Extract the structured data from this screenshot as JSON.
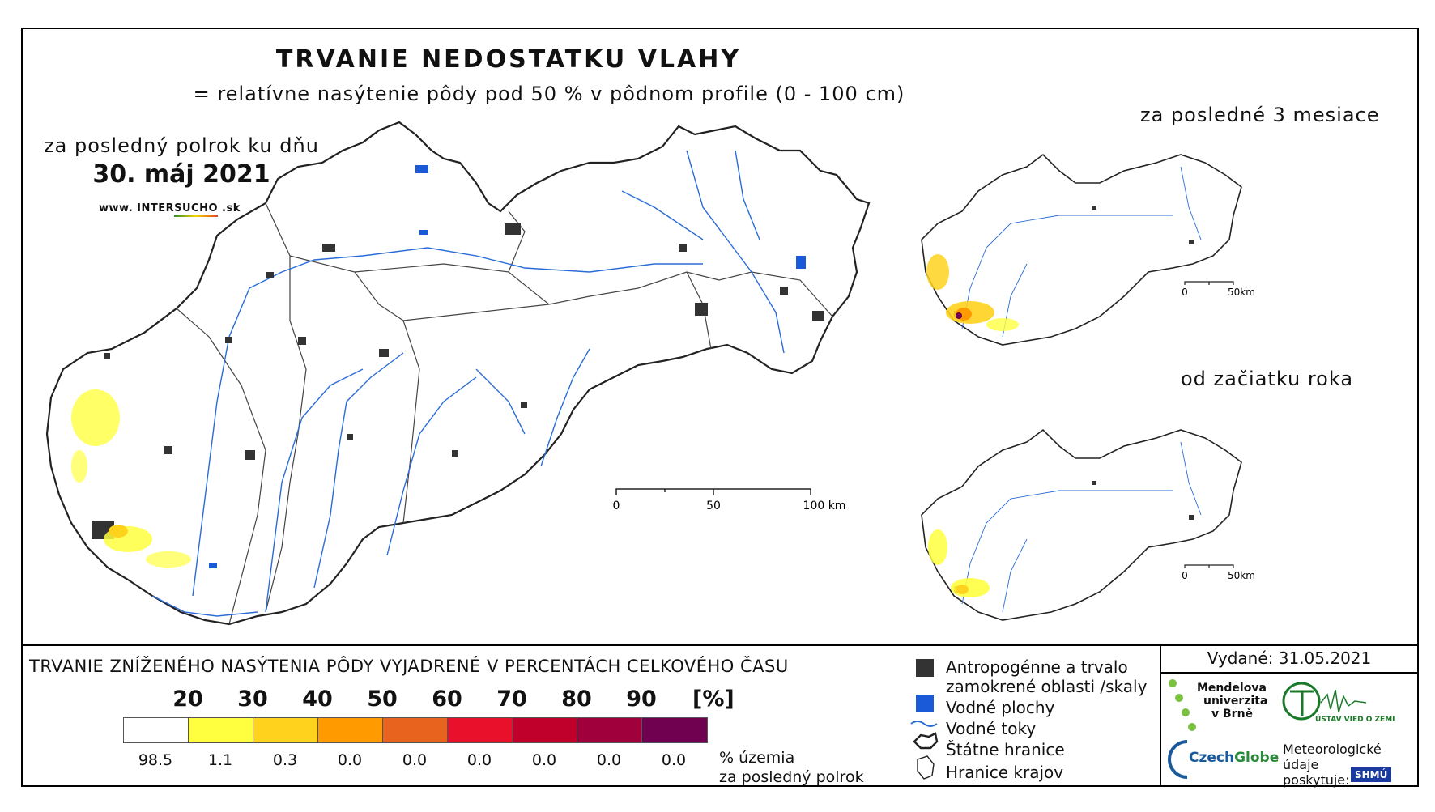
{
  "title": "TRVANIE NEDOSTATKU VLAHY",
  "subtitle": "= relatívne nasýtenie pôdy pod 50 % v pôdnom profile (0 - 100 cm)",
  "main_map": {
    "period_label": "za posledný polrok ku dňu",
    "date": "30. máj 2021",
    "website_prefix": "www.  INTER",
    "website_highlight": "SUCHO",
    "website_suffix": " .sk",
    "scale_labels": [
      "0",
      "50",
      "100 km"
    ]
  },
  "small_maps": [
    {
      "title": "za posledné 3 mesiace",
      "scale_labels": [
        "0",
        "50km"
      ]
    },
    {
      "title": "od začiatku roka",
      "scale_labels": [
        "0",
        "50km"
      ]
    }
  ],
  "legend": {
    "title": "TRVANIE ZNÍŽENÉHO NASÝTENIA PÔDY VYJADRENÉ V PERCENTÁCH CELKOVÉHO ČASU",
    "class_breaks": [
      "20",
      "30",
      "40",
      "50",
      "60",
      "70",
      "80",
      "90"
    ],
    "unit": "[%]",
    "colors": [
      "#ffffff",
      "#ffff40",
      "#ffd21e",
      "#ff9a00",
      "#e8641e",
      "#e8102a",
      "#c0002a",
      "#a0003c",
      "#700050"
    ],
    "area_percentages": [
      "98.5",
      "1.1",
      "0.3",
      "0.0",
      "0.0",
      "0.0",
      "0.0",
      "0.0",
      "0.0"
    ],
    "area_note_line1": "% územia",
    "area_note_line2": "za posledný polrok",
    "items": [
      {
        "icon": "dark-square-icon",
        "label_line1": "Antropogénne a trvalo",
        "label_line2": "zamokrené oblasti /skaly"
      },
      {
        "icon": "blue-square-icon",
        "label_line1": "Vodné plochy",
        "label_line2": ""
      },
      {
        "icon": "river-line-icon",
        "label_line1": "Vodné toky",
        "label_line2": ""
      },
      {
        "icon": "state-border-icon",
        "label_line1": "Štátne hranice",
        "label_line2": ""
      },
      {
        "icon": "region-border-icon",
        "label_line1": "Hranice krajov",
        "label_line2": ""
      }
    ]
  },
  "issued": "Vydané: 31.05.2021",
  "logos": {
    "mendel_line1": "Mendelova",
    "mendel_line2": "univerzita",
    "mendel_line3": "v Brně",
    "czechglobe_a": "Czech",
    "czechglobe_b": "Globe",
    "uvz": "ÚSTAV VIED O ZEMI",
    "meteo_line1": "Meteorologické",
    "meteo_line2": "údaje",
    "meteo_line3": "poskytuje:",
    "shmu": "SHMÚ"
  }
}
